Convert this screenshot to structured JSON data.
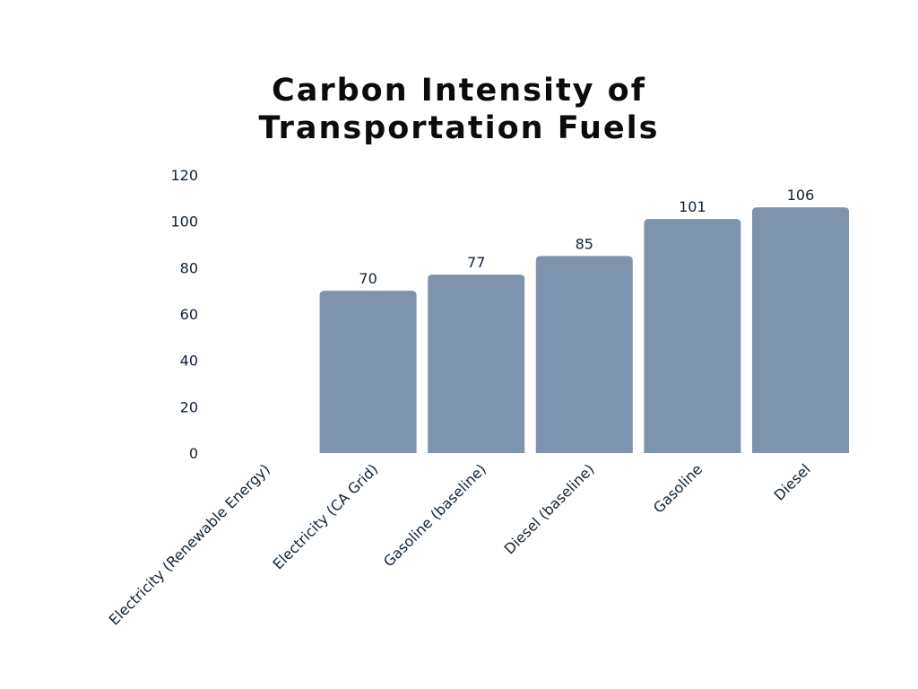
{
  "chart_data": {
    "type": "bar",
    "title_lines": [
      "Carbon Intensity of",
      "Transportation Fuels"
    ],
    "categories": [
      "Electricity (Renewable Energy)",
      "Electricity (CA Grid)",
      "Gasoline (baseline)",
      "Diesel (baseline)",
      "Gasoline",
      "Diesel"
    ],
    "values": [
      null,
      70,
      77,
      85,
      101,
      106
    ],
    "data_labels": [
      "",
      "70",
      "77",
      "85",
      "101",
      "106"
    ],
    "xlabel": "",
    "ylabel": "",
    "ylim": [
      0,
      120
    ],
    "yticks": [
      "0",
      "20",
      "40",
      "60",
      "80",
      "100",
      "120"
    ],
    "grid": false,
    "legend": "none",
    "bar_color": "#7d93ae",
    "text_color": "#0f2236"
  }
}
